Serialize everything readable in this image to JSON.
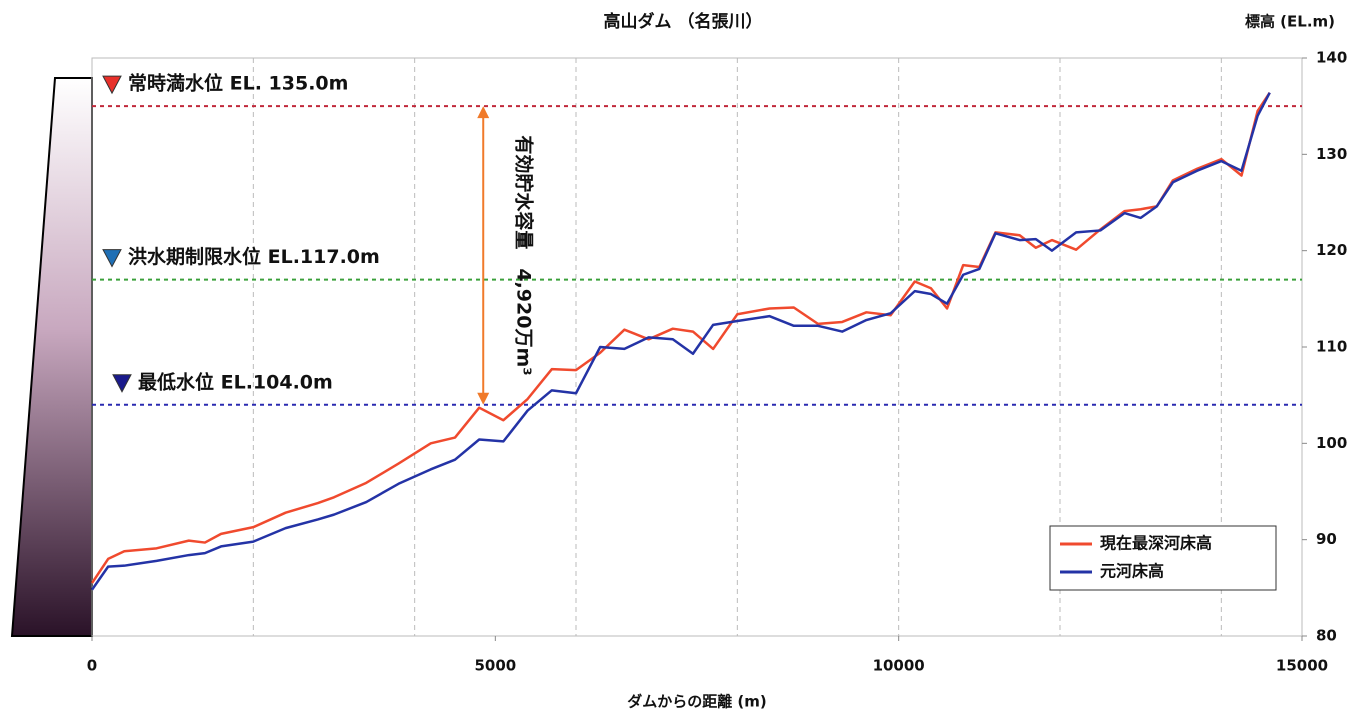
{
  "chart_data": {
    "type": "line",
    "title": "高山ダム （名張川）",
    "ylabel": "標高 (EL.m)",
    "xlabel": "ダムからの距離 (m)",
    "x": [
      0,
      200,
      400,
      800,
      1200,
      1400,
      1600,
      2000,
      2400,
      2800,
      3000,
      3400,
      3800,
      4200,
      4500,
      4800,
      5100,
      5400,
      5700,
      6000,
      6300,
      6600,
      6900,
      7200,
      7450,
      7700,
      8000,
      8400,
      8700,
      9000,
      9300,
      9600,
      9900,
      10200,
      10400,
      10600,
      10800,
      11000,
      11200,
      11500,
      11700,
      11900,
      12200,
      12500,
      12800,
      13000,
      13200,
      13400,
      13700,
      14000,
      14250,
      14450,
      14600
    ],
    "series": [
      {
        "name": "現在最深河床高",
        "color": "#f04a2e",
        "values": [
          85.5,
          88.0,
          88.8,
          89.1,
          89.9,
          89.7,
          90.6,
          91.3,
          92.8,
          93.8,
          94.4,
          95.9,
          97.9,
          100.0,
          100.6,
          103.7,
          102.4,
          104.6,
          107.7,
          107.6,
          109.4,
          111.8,
          110.8,
          111.9,
          111.6,
          109.8,
          113.4,
          114.0,
          114.1,
          112.4,
          112.6,
          113.6,
          113.3,
          116.8,
          116.1,
          114.0,
          118.5,
          118.3,
          121.9,
          121.6,
          120.3,
          121.1,
          120.1,
          122.2,
          124.1,
          124.3,
          124.6,
          127.3,
          128.5,
          129.5,
          127.8,
          134.5,
          136.4
        ]
      },
      {
        "name": "元河床高",
        "color": "#2433a6",
        "values": [
          84.8,
          87.2,
          87.3,
          87.8,
          88.4,
          88.6,
          89.3,
          89.8,
          91.2,
          92.1,
          92.6,
          93.9,
          95.8,
          97.3,
          98.3,
          100.4,
          100.2,
          103.4,
          105.5,
          105.2,
          110.0,
          109.8,
          111.0,
          110.8,
          109.3,
          112.3,
          112.7,
          113.2,
          112.2,
          112.2,
          111.6,
          112.8,
          113.5,
          115.8,
          115.5,
          114.5,
          117.5,
          118.1,
          121.8,
          121.1,
          121.2,
          120.0,
          121.9,
          122.1,
          123.9,
          123.4,
          124.6,
          127.1,
          128.3,
          129.3,
          128.3,
          134.0,
          136.4
        ]
      }
    ],
    "xlim": [
      0,
      15000
    ],
    "xticks": [
      0,
      5000,
      10000,
      15000
    ],
    "x_gridlines": [
      2000,
      4000,
      6000,
      8000,
      10000,
      12000,
      14000
    ],
    "ylim": [
      80,
      140
    ],
    "yticks": [
      80,
      90,
      100,
      110,
      120,
      130,
      140
    ],
    "y_axis_side": "right",
    "legend": "lower right",
    "reference_lines": [
      {
        "label": "常時満水位 EL. 135.0m",
        "value": 135,
        "color": "#c0283a"
      },
      {
        "label": "洪水期制限水位 EL.117.0m",
        "value": 117,
        "color": "#3aa03a"
      },
      {
        "label": "最低水位 EL.104.0m",
        "value": 104,
        "color": "#2a2ab0"
      }
    ],
    "marker_colors": [
      "#e8302a",
      "#1f6fb5",
      "#1a1a8c"
    ],
    "storage_annotation": {
      "text": "有効貯水容量　4,920万m³",
      "color": "#f07a2a"
    }
  }
}
